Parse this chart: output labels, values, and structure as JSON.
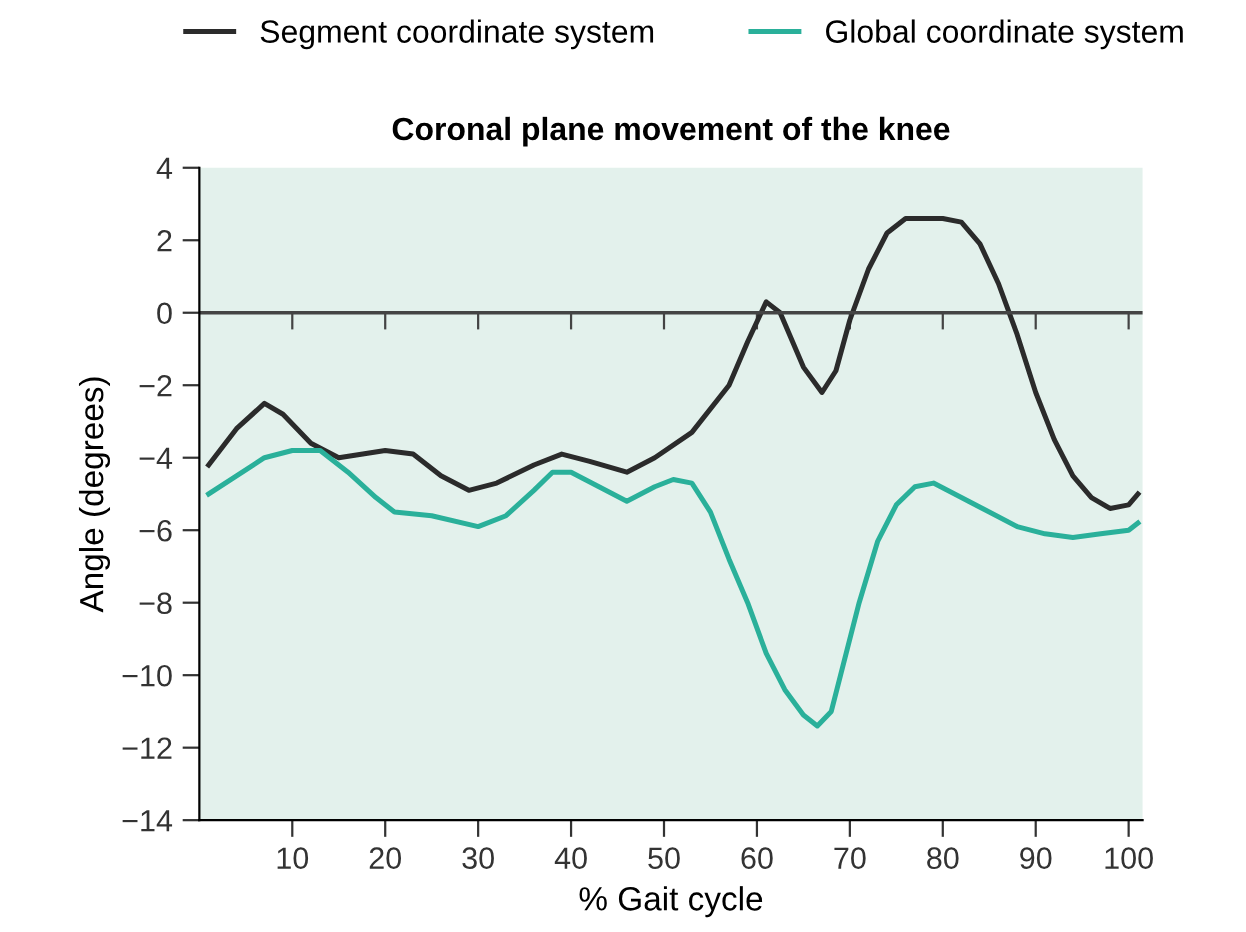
{
  "chart_data": {
    "type": "line",
    "title": "Coronal plane movement of the knee",
    "xlabel": "% Gait cycle",
    "ylabel": "Angle (degrees)",
    "xlim": [
      0,
      101.5
    ],
    "xticks": [
      10,
      20,
      30,
      40,
      50,
      60,
      70,
      80,
      90,
      100
    ],
    "ylim": [
      -14,
      4
    ],
    "yticks": [
      {
        "value": -14,
        "label": "−14"
      },
      {
        "value": -12,
        "label": "−12"
      },
      {
        "value": -10,
        "label": "−10"
      },
      {
        "value": -8,
        "label": "−8"
      },
      {
        "value": -6,
        "label": "−6"
      },
      {
        "value": -4,
        "label": "−4"
      },
      {
        "value": -2,
        "label": "−2"
      },
      0,
      2,
      4
    ],
    "grid": false,
    "legend": "top",
    "marker": "none",
    "line_style": "solid",
    "ref_lines": [
      {
        "axis": "y",
        "value": 0,
        "color": "#444444"
      }
    ],
    "series": [
      {
        "name": "Segment coordinate system",
        "color": "#2b2b2b",
        "x": [
          1,
          4,
          7,
          9,
          12,
          15,
          20,
          23,
          26,
          29,
          32,
          36,
          39,
          42,
          46,
          49,
          53,
          57,
          59,
          61,
          62.5,
          65,
          67,
          68.5,
          70,
          72,
          74,
          76,
          80,
          82,
          84,
          86,
          88,
          90,
          92,
          94,
          96,
          98,
          100,
          101
        ],
        "values": [
          -4.2,
          -3.2,
          -2.5,
          -2.8,
          -3.6,
          -4.0,
          -3.8,
          -3.9,
          -4.5,
          -4.9,
          -4.7,
          -4.2,
          -3.9,
          -4.1,
          -4.4,
          -4.0,
          -3.3,
          -2.0,
          -0.8,
          0.3,
          0.0,
          -1.5,
          -2.2,
          -1.6,
          -0.2,
          1.2,
          2.2,
          2.6,
          2.6,
          2.5,
          1.9,
          0.8,
          -0.6,
          -2.2,
          -3.5,
          -4.5,
          -5.1,
          -5.4,
          -5.3,
          -5.0
        ]
      },
      {
        "name": "Global coordinate system",
        "color": "#2ab09a",
        "x": [
          1,
          4,
          7,
          10,
          13,
          16,
          19,
          21,
          25,
          30,
          33,
          36,
          38,
          40,
          43,
          46,
          49,
          51,
          53,
          55,
          57,
          59,
          61,
          63,
          65,
          66.5,
          68,
          69,
          71,
          73,
          75,
          77,
          79,
          82,
          85,
          88,
          91,
          94,
          97,
          100,
          101
        ],
        "values": [
          -5.0,
          -4.5,
          -4.0,
          -3.8,
          -3.8,
          -4.4,
          -5.1,
          -5.5,
          -5.6,
          -5.9,
          -5.6,
          -4.9,
          -4.4,
          -4.4,
          -4.8,
          -5.2,
          -4.8,
          -4.6,
          -4.7,
          -5.5,
          -6.8,
          -8.0,
          -9.4,
          -10.4,
          -11.1,
          -11.4,
          -11.0,
          -10.0,
          -8.0,
          -6.3,
          -5.3,
          -4.8,
          -4.7,
          -5.1,
          -5.5,
          -5.9,
          -6.1,
          -6.2,
          -6.1,
          -6.0,
          -5.8
        ]
      }
    ]
  }
}
